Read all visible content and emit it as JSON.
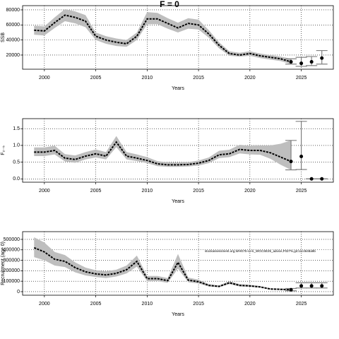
{
  "chart_data": [
    {
      "type": "line",
      "title": "F = 0",
      "xlabel": "Years",
      "ylabel": "SSB",
      "x": [
        1999,
        2000,
        2001,
        2002,
        2003,
        2004,
        2005,
        2006,
        2007,
        2008,
        2009,
        2010,
        2011,
        2012,
        2013,
        2014,
        2015,
        2016,
        2017,
        2018,
        2019,
        2020,
        2021,
        2022,
        2023,
        2024
      ],
      "values": [
        53000,
        52000,
        63000,
        73000,
        70000,
        65000,
        45000,
        40000,
        37000,
        35000,
        45000,
        68000,
        68000,
        62000,
        56000,
        62000,
        60000,
        48000,
        33000,
        22000,
        20000,
        22000,
        19000,
        17000,
        15000,
        11000
      ],
      "lower": [
        47000,
        46000,
        56000,
        65000,
        62000,
        57000,
        40000,
        35000,
        32000,
        31000,
        40000,
        61000,
        61000,
        55000,
        50000,
        55000,
        54000,
        43000,
        29000,
        19000,
        18000,
        19000,
        16000,
        14000,
        12000,
        8000
      ],
      "upper": [
        59000,
        58000,
        70000,
        81000,
        78000,
        73000,
        50000,
        45000,
        42000,
        40000,
        50000,
        77000,
        76000,
        69000,
        63000,
        69000,
        67000,
        53000,
        37000,
        25000,
        23000,
        25000,
        22000,
        20000,
        18000,
        15000
      ],
      "projection": {
        "x": [
          2024,
          2025,
          2026,
          2027
        ],
        "values": [
          11000,
          9000,
          11000,
          16000
        ],
        "lower": [
          8000,
          5000,
          6000,
          8000
        ],
        "upper": [
          15000,
          17000,
          18000,
          26000
        ]
      },
      "color": "#000000",
      "band_color": "#bebebe",
      "errorbar_color": "#808080",
      "xlim": [
        1997.88,
        2028.12
      ],
      "xticks": [
        2000,
        2005,
        2010,
        2015,
        2020,
        2025
      ],
      "ylim": [
        1200,
        85600
      ],
      "yticks": [
        20000,
        40000,
        60000,
        80000
      ],
      "grid": true
    },
    {
      "type": "line",
      "xlabel": "Years",
      "ylabel": "F₂₋₅",
      "x": [
        1999,
        2000,
        2001,
        2002,
        2003,
        2004,
        2005,
        2006,
        2007,
        2008,
        2009,
        2010,
        2011,
        2012,
        2013,
        2014,
        2015,
        2016,
        2017,
        2018,
        2019,
        2020,
        2021,
        2022,
        2023,
        2024
      ],
      "values": [
        0.8,
        0.8,
        0.85,
        0.62,
        0.58,
        0.68,
        0.75,
        0.68,
        1.1,
        0.68,
        0.62,
        0.55,
        0.45,
        0.42,
        0.42,
        0.43,
        0.47,
        0.55,
        0.72,
        0.75,
        0.88,
        0.85,
        0.85,
        0.78,
        0.65,
        0.52
      ],
      "lower": [
        0.68,
        0.68,
        0.73,
        0.52,
        0.48,
        0.58,
        0.64,
        0.58,
        0.95,
        0.58,
        0.53,
        0.47,
        0.38,
        0.36,
        0.36,
        0.37,
        0.4,
        0.47,
        0.62,
        0.65,
        0.76,
        0.73,
        0.72,
        0.6,
        0.42,
        0.27
      ],
      "upper": [
        0.94,
        0.94,
        0.99,
        0.74,
        0.7,
        0.8,
        0.88,
        0.8,
        1.28,
        0.8,
        0.73,
        0.65,
        0.53,
        0.49,
        0.49,
        0.5,
        0.55,
        0.64,
        0.84,
        0.87,
        1.02,
        0.99,
        1.0,
        1.0,
        1.05,
        1.15
      ],
      "projection": {
        "x": [
          2024,
          2025,
          2026,
          2027
        ],
        "values": [
          0.52,
          0.67,
          0,
          0
        ],
        "lower": [
          0.27,
          0.28,
          0,
          0
        ],
        "upper": [
          1.15,
          1.72,
          0,
          0
        ]
      },
      "color": "#000000",
      "band_color": "#bebebe",
      "errorbar_color": "#808080",
      "xlim": [
        1997.88,
        2028.12
      ],
      "xticks": [
        2000,
        2005,
        2010,
        2015,
        2020,
        2025
      ],
      "ylim": [
        -0.1,
        1.8
      ],
      "yticks": [
        {
          "value": 0,
          "label": "0.0"
        },
        0.5,
        {
          "value": 1,
          "label": "1.0"
        },
        1.5
      ],
      "grid": true
    },
    {
      "type": "line",
      "xlabel": "Years",
      "ylabel": "Recruitment (age 0)",
      "annotation": "stockassessment.org,WHG7b-ce-k_WGCSE25_advice,F027%,git:1cc4648a9b",
      "x": [
        1999,
        2000,
        2001,
        2002,
        2003,
        2004,
        2005,
        2006,
        2007,
        2008,
        2009,
        2010,
        2011,
        2012,
        2013,
        2014,
        2015,
        2016,
        2017,
        2018,
        2019,
        2020,
        2021,
        2022,
        2023,
        2024
      ],
      "values": [
        420000,
        380000,
        310000,
        290000,
        230000,
        190000,
        170000,
        160000,
        175000,
        210000,
        290000,
        125000,
        125000,
        105000,
        280000,
        110000,
        95000,
        60000,
        50000,
        85000,
        60000,
        55000,
        45000,
        25000,
        22000,
        18000
      ],
      "lower": [
        330000,
        300000,
        250000,
        235000,
        185000,
        155000,
        140000,
        130000,
        145000,
        175000,
        240000,
        100000,
        100000,
        85000,
        220000,
        90000,
        78000,
        50000,
        42000,
        72000,
        50000,
        46000,
        38000,
        20000,
        15000,
        8000
      ],
      "upper": [
        520000,
        470000,
        380000,
        350000,
        280000,
        230000,
        205000,
        195000,
        210000,
        250000,
        345000,
        150000,
        150000,
        130000,
        360000,
        135000,
        115000,
        72000,
        60000,
        100000,
        72000,
        66000,
        54000,
        32000,
        30000,
        30000
      ],
      "projection": {
        "x": [
          2024,
          2025,
          2026,
          2027
        ],
        "values": [
          18000,
          55000,
          55000,
          55000
        ],
        "lower": [
          8000,
          35000,
          35000,
          35000
        ],
        "upper": [
          30000,
          85000,
          85000,
          85000
        ]
      },
      "color": "#000000",
      "band_color": "#bebebe",
      "errorbar_color": "#808080",
      "xlim": [
        1997.88,
        2028.12
      ],
      "xticks": [
        2000,
        2005,
        2010,
        2015,
        2020,
        2025
      ],
      "ylim": [
        -34000,
        574000
      ],
      "yticks": [
        0,
        100000,
        200000,
        300000,
        400000,
        500000
      ],
      "grid": true
    }
  ]
}
